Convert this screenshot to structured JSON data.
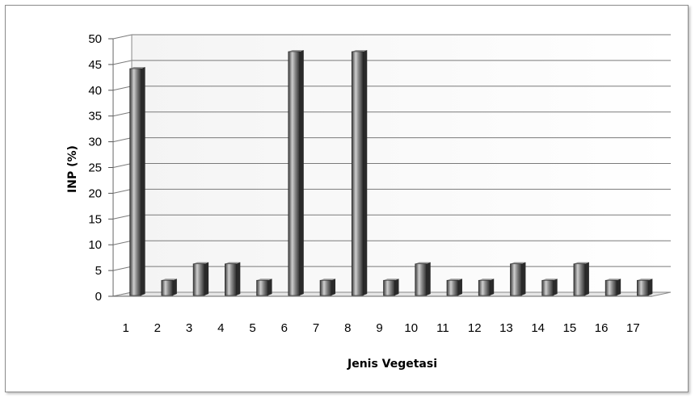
{
  "chart_data": {
    "type": "bar",
    "title": "",
    "xlabel": "Jenis Vegetasi",
    "ylabel": "INP (%)",
    "ylim": [
      0,
      50
    ],
    "yticks": [
      0,
      5,
      10,
      15,
      20,
      25,
      30,
      35,
      40,
      45,
      50
    ],
    "categories": [
      "1",
      "2",
      "3",
      "4",
      "5",
      "6",
      "7",
      "8",
      "9",
      "10",
      "11",
      "12",
      "13",
      "14",
      "15",
      "16",
      "17"
    ],
    "values": [
      44.2,
      3.1,
      6.3,
      6.3,
      3.1,
      47.5,
      3.1,
      47.5,
      3.1,
      6.3,
      3.1,
      3.1,
      6.3,
      3.1,
      6.3,
      3.1,
      3.1
    ],
    "grid": true,
    "legend": "none",
    "bar_color": "#5a5a5a"
  }
}
